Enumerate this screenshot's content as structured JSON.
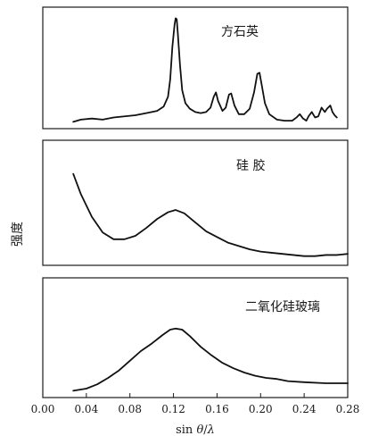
{
  "chart_data": {
    "type": "line",
    "xlabel": "sin θ/λ",
    "ylabel": "强度",
    "xlim": [
      0.0,
      0.28
    ],
    "x_ticks": [
      0.0,
      0.04,
      0.08,
      0.12,
      0.16,
      0.2,
      0.24,
      0.28
    ],
    "x_tick_labels": [
      "0.00",
      "0.04",
      "0.08",
      "0.12",
      "0.16",
      "0.20",
      "0.24",
      "0.28"
    ],
    "ylim": [
      0,
      1
    ],
    "panels": [
      {
        "label": "方石英",
        "series": [
          {
            "x": [
              0.028,
              0.035,
              0.045,
              0.055,
              0.065,
              0.075,
              0.085,
              0.095,
              0.105,
              0.111,
              0.115,
              0.117,
              0.119,
              0.121,
              0.122,
              0.123,
              0.124,
              0.126,
              0.128,
              0.131,
              0.135,
              0.14,
              0.145,
              0.15,
              0.154,
              0.157,
              0.159,
              0.161,
              0.165,
              0.168,
              0.171,
              0.173,
              0.176,
              0.18,
              0.185,
              0.19,
              0.194,
              0.197,
              0.199,
              0.201,
              0.204,
              0.208,
              0.215,
              0.222,
              0.229,
              0.233,
              0.236,
              0.239,
              0.242,
              0.244,
              0.247,
              0.25,
              0.253,
              0.256,
              0.259,
              0.261,
              0.264,
              0.266,
              0.268,
              0.27
            ],
            "y": [
              0.03,
              0.05,
              0.06,
              0.05,
              0.07,
              0.08,
              0.09,
              0.11,
              0.13,
              0.17,
              0.26,
              0.42,
              0.72,
              0.92,
              0.98,
              0.97,
              0.84,
              0.55,
              0.32,
              0.2,
              0.15,
              0.12,
              0.11,
              0.12,
              0.16,
              0.26,
              0.3,
              0.22,
              0.13,
              0.16,
              0.28,
              0.29,
              0.18,
              0.1,
              0.1,
              0.15,
              0.3,
              0.47,
              0.48,
              0.37,
              0.2,
              0.1,
              0.05,
              0.04,
              0.04,
              0.07,
              0.1,
              0.06,
              0.04,
              0.08,
              0.12,
              0.07,
              0.08,
              0.16,
              0.12,
              0.15,
              0.18,
              0.12,
              0.09,
              0.07
            ]
          }
        ]
      },
      {
        "label": "硅 胶",
        "series": [
          {
            "x": [
              0.028,
              0.035,
              0.045,
              0.055,
              0.065,
              0.075,
              0.085,
              0.095,
              0.105,
              0.115,
              0.122,
              0.13,
              0.14,
              0.15,
              0.16,
              0.17,
              0.18,
              0.19,
              0.2,
              0.21,
              0.22,
              0.23,
              0.24,
              0.25,
              0.26,
              0.27,
              0.28
            ],
            "y": [
              0.78,
              0.6,
              0.4,
              0.26,
              0.2,
              0.2,
              0.23,
              0.3,
              0.38,
              0.44,
              0.46,
              0.43,
              0.35,
              0.27,
              0.22,
              0.17,
              0.14,
              0.11,
              0.09,
              0.08,
              0.07,
              0.06,
              0.05,
              0.05,
              0.06,
              0.06,
              0.07
            ]
          }
        ]
      },
      {
        "label": "二氧化硅玻璃",
        "series": [
          {
            "x": [
              0.028,
              0.04,
              0.05,
              0.06,
              0.07,
              0.08,
              0.09,
              0.1,
              0.11,
              0.117,
              0.122,
              0.128,
              0.135,
              0.145,
              0.155,
              0.165,
              0.175,
              0.185,
              0.195,
              0.205,
              0.215,
              0.225,
              0.24,
              0.26,
              0.28
            ],
            "y": [
              0.03,
              0.05,
              0.09,
              0.15,
              0.22,
              0.31,
              0.4,
              0.47,
              0.55,
              0.6,
              0.61,
              0.6,
              0.54,
              0.44,
              0.36,
              0.29,
              0.24,
              0.2,
              0.17,
              0.15,
              0.14,
              0.12,
              0.11,
              0.1,
              0.1
            ]
          }
        ]
      }
    ]
  }
}
